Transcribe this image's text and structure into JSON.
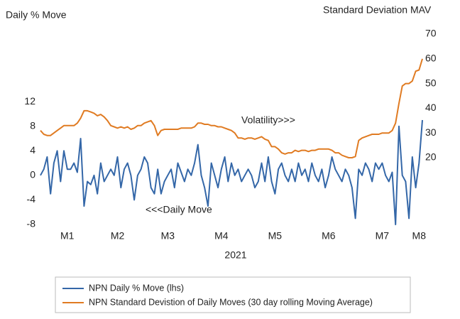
{
  "chart_data": {
    "type": "line",
    "ylabel": "Daily % Move",
    "y2label": "Standard Deviation MAV",
    "xlabel": "2021",
    "annotations": [
      "Volatility>>>",
      "<<<Daily Move"
    ],
    "categories": [
      null,
      null,
      null,
      null,
      null,
      null,
      null,
      null,
      "M1",
      null,
      null,
      null,
      null,
      null,
      null,
      null,
      null,
      null,
      null,
      null,
      null,
      null,
      null,
      "M2",
      null,
      null,
      null,
      null,
      null,
      null,
      null,
      null,
      null,
      null,
      null,
      null,
      null,
      null,
      "M3",
      null,
      null,
      null,
      null,
      null,
      null,
      null,
      null,
      null,
      null,
      null,
      null,
      null,
      null,
      null,
      "M4",
      null,
      null,
      null,
      null,
      null,
      null,
      null,
      null,
      null,
      null,
      null,
      null,
      null,
      null,
      null,
      "M5",
      null,
      null,
      null,
      null,
      null,
      null,
      null,
      null,
      null,
      null,
      null,
      null,
      null,
      null,
      null,
      "M6",
      null,
      null,
      null,
      null,
      null,
      null,
      null,
      null,
      null,
      null,
      null,
      null,
      null,
      null,
      null,
      "M7",
      null,
      null,
      null,
      null,
      null,
      null,
      null,
      null,
      null,
      null,
      "M8",
      null
    ],
    "ylim": [
      -8,
      23
    ],
    "yticks": [
      -8,
      -4,
      0,
      4,
      8,
      12
    ],
    "y2lim": [
      -7,
      70
    ],
    "y2ticks": [
      20,
      30,
      40,
      50,
      60,
      70
    ],
    "legend": "bottom",
    "series": [
      {
        "name": "NPN Daily % Move (lhs)",
        "color": "#3467a8",
        "values": [
          0,
          1,
          3,
          -3,
          2,
          4,
          -1,
          4,
          1,
          1,
          2,
          0.5,
          6,
          -5,
          -1,
          -1.5,
          0,
          -3,
          2,
          -1,
          0,
          1,
          0,
          3,
          -2,
          1,
          2,
          0,
          -4,
          0,
          1,
          3,
          2,
          -2,
          -3,
          1,
          -3,
          -1,
          0,
          1,
          -2,
          2,
          0.5,
          -1,
          1,
          0,
          2,
          5,
          0,
          -2,
          -5,
          2,
          0,
          -2,
          1,
          3,
          -1,
          2,
          0,
          1,
          -1,
          0,
          1,
          0,
          -2,
          -1,
          2,
          -1,
          3,
          -1,
          -3,
          1,
          2,
          0,
          -1,
          1,
          -1,
          2,
          0,
          1,
          -1,
          2,
          0,
          -1,
          1,
          -2,
          0,
          3,
          1,
          0,
          -1,
          1,
          0,
          -2,
          -7,
          1,
          0,
          2,
          1,
          -1,
          2,
          1,
          2,
          0,
          -1,
          0.5,
          -8,
          8,
          0,
          -1,
          -7,
          3,
          -2,
          2,
          9
        ]
      },
      {
        "name": "NPN Standard Devistion of Daily Moves (30 day rolling Moving Average)",
        "color": "#e07b22",
        "axis": "y2",
        "values": [
          31,
          29.5,
          29,
          29,
          30,
          31,
          32,
          33,
          33,
          33,
          33,
          34,
          36,
          39,
          39,
          38.5,
          38,
          37,
          37.5,
          36.5,
          35,
          33,
          32.5,
          32,
          32.5,
          32,
          32.5,
          31.5,
          32,
          33,
          33,
          34,
          34.5,
          35,
          33,
          29,
          31,
          31.5,
          31.5,
          31.5,
          31.5,
          31.5,
          32,
          32,
          32,
          32,
          32.5,
          34,
          34,
          33.5,
          33.5,
          33,
          33,
          32.5,
          32.5,
          32,
          31.5,
          31,
          30,
          28,
          28,
          27.5,
          28,
          28,
          27.5,
          28,
          28.5,
          27.5,
          27,
          24.5,
          24.5,
          23.5,
          22,
          21.5,
          22,
          22,
          23,
          22.5,
          23,
          23,
          22.5,
          23,
          23,
          23.5,
          23.5,
          23.5,
          23.5,
          23,
          22,
          22,
          21,
          20.5,
          20,
          20,
          20.5,
          27,
          28,
          28.5,
          29,
          29.5,
          29.5,
          29.5,
          30,
          30,
          30,
          31,
          34,
          42,
          49,
          50,
          50,
          51,
          55,
          55.5,
          60
        ]
      }
    ]
  }
}
